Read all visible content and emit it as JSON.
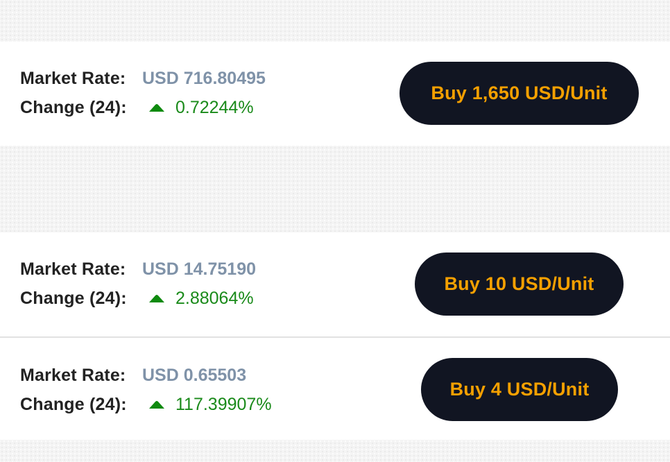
{
  "labels": {
    "market_rate": "Market Rate:",
    "change": "Change (24):"
  },
  "items": [
    {
      "market_rate": "USD 716.80495",
      "change": "0.72244%",
      "button_label": "Buy 1,650 USD/Unit"
    },
    {
      "market_rate": "USD 14.75190",
      "change": "2.88064%",
      "button_label": "Buy 10 USD/Unit"
    },
    {
      "market_rate": "USD 0.65503",
      "change": "117.39907%",
      "button_label": "Buy 4 USD/Unit"
    }
  ],
  "icons": {
    "change_direction": "arrow-up-icon"
  },
  "colors": {
    "rate_value": "#7f92a8",
    "change_positive": "#1a8a1a",
    "button_bg": "#111522",
    "button_text": "#f5a000"
  }
}
